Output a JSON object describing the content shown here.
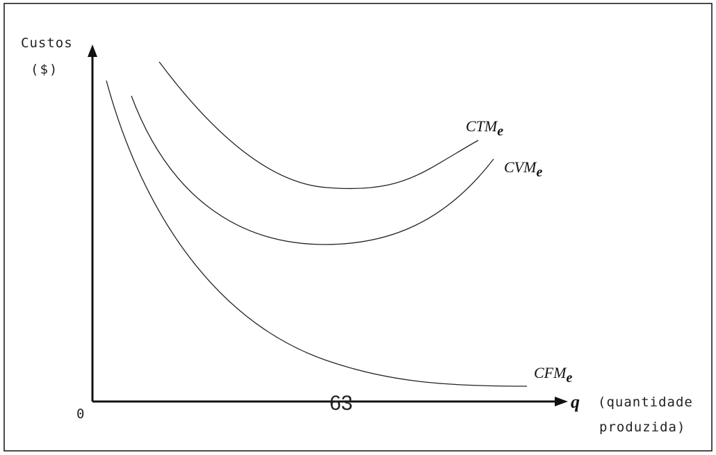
{
  "y_axis": {
    "label_line1": "Custos",
    "label_line2": "($)"
  },
  "origin_label": "0",
  "x_axis": {
    "symbol": "q",
    "description_line1": "(quantidade",
    "description_line2": "produzida)"
  },
  "curves": [
    {
      "id": "ctm",
      "name": "CTM",
      "subscript": "e"
    },
    {
      "id": "cvm",
      "name": "CVM",
      "subscript": "e"
    },
    {
      "id": "cfm",
      "name": "CFM",
      "subscript": "e"
    }
  ],
  "page_number": "63"
}
